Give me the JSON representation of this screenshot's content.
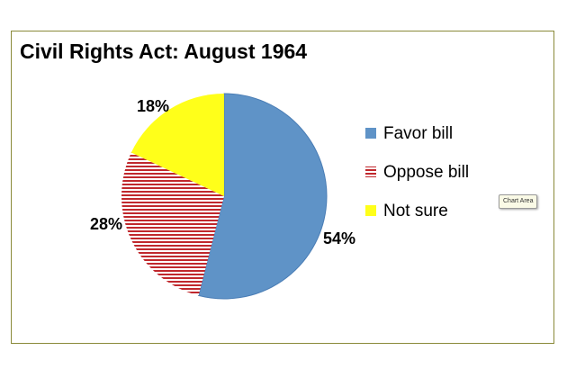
{
  "chart_data": {
    "type": "pie",
    "title": "Civil Rights Act: August 1964",
    "slices": [
      {
        "label": "Favor bill",
        "value": 54,
        "data_label": "54%",
        "color": "#5f93c7",
        "pattern": "solid"
      },
      {
        "label": "Oppose bill",
        "value": 28,
        "data_label": "28%",
        "color": "#c0282d",
        "pattern": "horizontal-stripes"
      },
      {
        "label": "Not sure",
        "value": 18,
        "data_label": "18%",
        "color": "#ffff1a",
        "pattern": "solid"
      }
    ],
    "start_angle": "12 o'clock",
    "direction": "clockwise",
    "legend_position": "right"
  },
  "tooltip": {
    "text": "Chart Area"
  }
}
